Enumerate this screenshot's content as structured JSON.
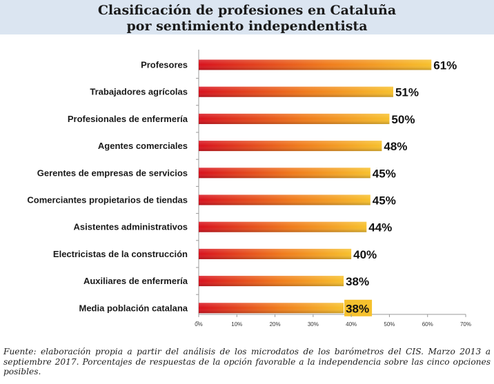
{
  "title_lines": [
    "Clasificación de profesiones en Cataluña",
    "por sentimiento independentista"
  ],
  "chart_data": {
    "type": "bar",
    "orientation": "horizontal",
    "title": "Clasificación de profesiones en Cataluña por sentimiento independentista",
    "categories": [
      "Profesores",
      "Trabajadores agrícolas",
      "Profesionales de enfermería",
      "Agentes comerciales",
      "Gerentes de empresas de servicios",
      "Comerciantes propietarios de tiendas",
      "Asistentes administrativos",
      "Electricistas de la construcción",
      "Auxiliares de enfermería",
      "Media población catalana"
    ],
    "values": [
      61,
      51,
      50,
      48,
      45,
      45,
      44,
      40,
      38,
      38
    ],
    "data_labels": [
      "61%",
      "51%",
      "50%",
      "48%",
      "45%",
      "45%",
      "44%",
      "40%",
      "38%",
      "38%"
    ],
    "highlight_index": 9,
    "xlim": [
      0,
      70
    ],
    "x_ticks": [
      0,
      10,
      20,
      30,
      40,
      50,
      60,
      70
    ],
    "x_tick_labels": [
      "0%",
      "10%",
      "20%",
      "30%",
      "40%",
      "50%",
      "60%",
      "70%"
    ],
    "grid": false,
    "colors": {
      "bar_start": "#d8101c",
      "bar_mid": "#f07a1a",
      "bar_end": "#f7c02b",
      "highlight_box": "#f5c12e",
      "axis": "#9a9a9a"
    }
  },
  "source_note": "Fuente: elaboración propia a partir del análisis de los microdatos de los barómetros del CIS. Marzo 2013 a septiembre 2017. Porcentajes de respuestas de la opción favorable a la independencia sobre las cinco opciones posibles."
}
